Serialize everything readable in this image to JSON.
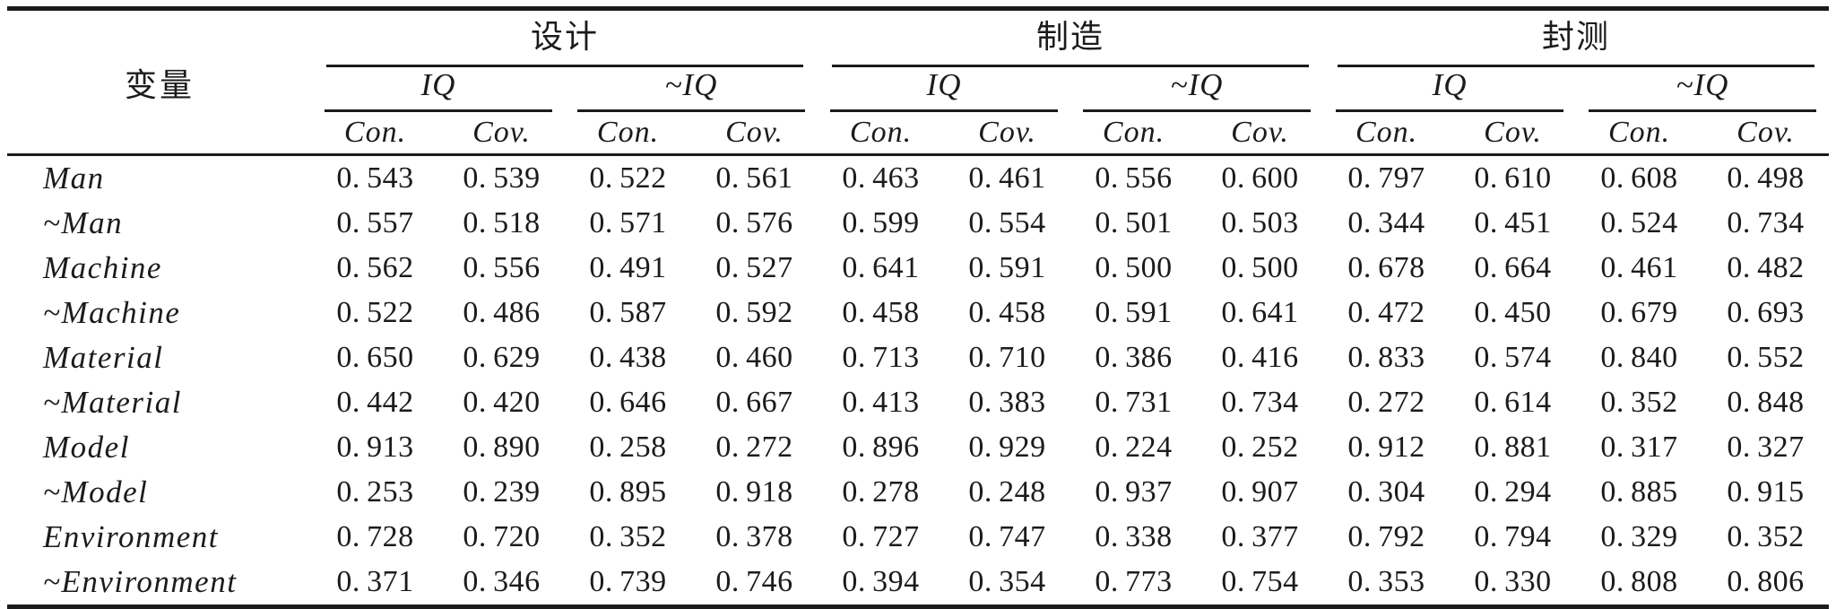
{
  "chart_data": {
    "type": "table",
    "corner_header": "变量",
    "group_headers": [
      "设计",
      "制造",
      "封测"
    ],
    "subgroup_headers": [
      "IQ",
      "~IQ"
    ],
    "measure_headers": [
      "Con.",
      "Cov."
    ],
    "column_structure": "3 groups x 2 subgroups x 2 measures = 12 value columns",
    "rows": [
      {
        "label": "Man",
        "values": [
          "0.543",
          "0.539",
          "0.522",
          "0.561",
          "0.463",
          "0.461",
          "0.556",
          "0.600",
          "0.797",
          "0.610",
          "0.608",
          "0.498"
        ]
      },
      {
        "label": "~Man",
        "values": [
          "0.557",
          "0.518",
          "0.571",
          "0.576",
          "0.599",
          "0.554",
          "0.501",
          "0.503",
          "0.344",
          "0.451",
          "0.524",
          "0.734"
        ]
      },
      {
        "label": "Machine",
        "values": [
          "0.562",
          "0.556",
          "0.491",
          "0.527",
          "0.641",
          "0.591",
          "0.500",
          "0.500",
          "0.678",
          "0.664",
          "0.461",
          "0.482"
        ]
      },
      {
        "label": "~Machine",
        "values": [
          "0.522",
          "0.486",
          "0.587",
          "0.592",
          "0.458",
          "0.458",
          "0.591",
          "0.641",
          "0.472",
          "0.450",
          "0.679",
          "0.693"
        ]
      },
      {
        "label": "Material",
        "values": [
          "0.650",
          "0.629",
          "0.438",
          "0.460",
          "0.713",
          "0.710",
          "0.386",
          "0.416",
          "0.833",
          "0.574",
          "0.840",
          "0.552"
        ]
      },
      {
        "label": "~Material",
        "values": [
          "0.442",
          "0.420",
          "0.646",
          "0.667",
          "0.413",
          "0.383",
          "0.731",
          "0.734",
          "0.272",
          "0.614",
          "0.352",
          "0.848"
        ]
      },
      {
        "label": "Model",
        "values": [
          "0.913",
          "0.890",
          "0.258",
          "0.272",
          "0.896",
          "0.929",
          "0.224",
          "0.252",
          "0.912",
          "0.881",
          "0.317",
          "0.327"
        ]
      },
      {
        "label": "~Model",
        "values": [
          "0.253",
          "0.239",
          "0.895",
          "0.918",
          "0.278",
          "0.248",
          "0.937",
          "0.907",
          "0.304",
          "0.294",
          "0.885",
          "0.915"
        ]
      },
      {
        "label": "Environment",
        "values": [
          "0.728",
          "0.720",
          "0.352",
          "0.378",
          "0.727",
          "0.747",
          "0.338",
          "0.377",
          "0.792",
          "0.794",
          "0.329",
          "0.352"
        ]
      },
      {
        "label": "~Environment",
        "values": [
          "0.371",
          "0.346",
          "0.739",
          "0.746",
          "0.394",
          "0.354",
          "0.773",
          "0.754",
          "0.353",
          "0.330",
          "0.808",
          "0.806"
        ]
      }
    ]
  }
}
